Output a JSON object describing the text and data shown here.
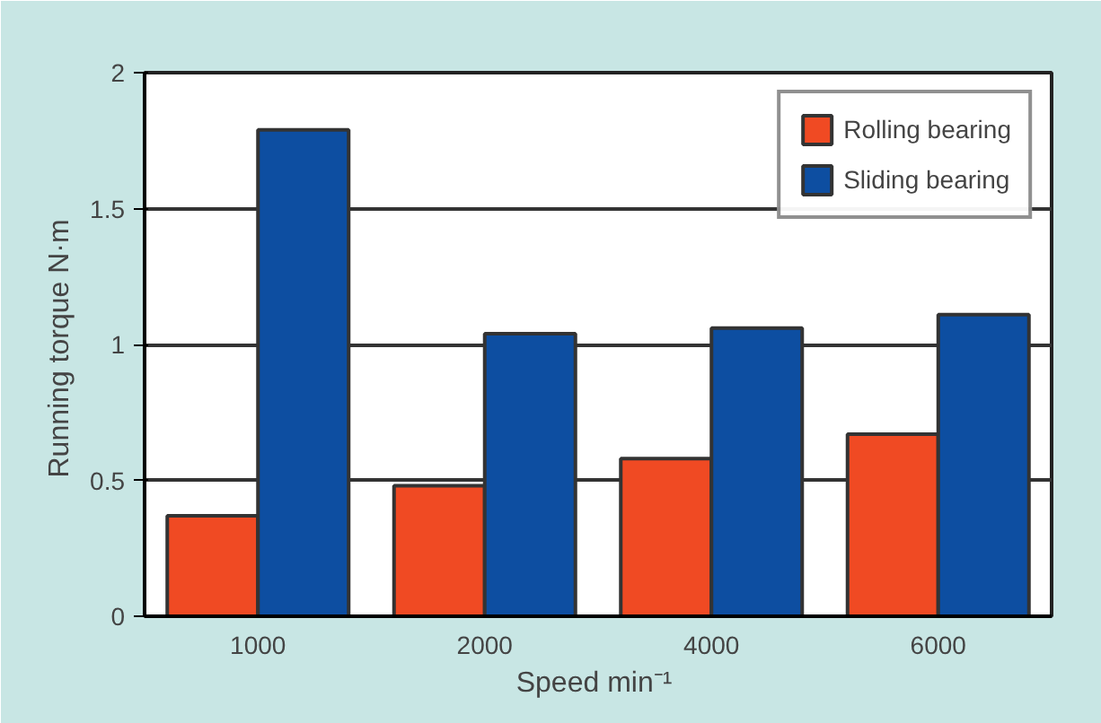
{
  "chart_data": {
    "type": "bar",
    "categories": [
      "1000",
      "2000",
      "4000",
      "6000"
    ],
    "series": [
      {
        "name": "Rolling bearing",
        "color": "#f04a23",
        "values": [
          0.37,
          0.48,
          0.58,
          0.67
        ]
      },
      {
        "name": "Sliding bearing",
        "color": "#0d4ea1",
        "values": [
          1.79,
          1.04,
          1.06,
          1.11
        ]
      }
    ],
    "xlabel": "Speed  min⁻¹",
    "ylabel": "Running torque  N·m",
    "ylim": [
      0,
      2
    ],
    "yticks": [
      0,
      0.5,
      1,
      1.5,
      2
    ],
    "grid": "y",
    "legend": "top right"
  }
}
